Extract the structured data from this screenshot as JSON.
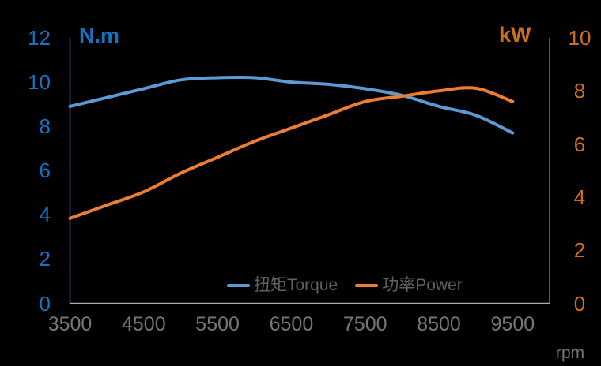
{
  "chart_data": {
    "type": "line",
    "title": "",
    "x_label": "rpm",
    "x": [
      3500,
      4000,
      4500,
      5000,
      5500,
      6000,
      6500,
      7000,
      7500,
      8000,
      8500,
      9000,
      9500
    ],
    "x_axis": {
      "min": 3500,
      "max": 10000,
      "tick_interval": 1000,
      "tick_values": [
        3500,
        4500,
        5500,
        6500,
        7500,
        8500,
        9500
      ],
      "tick_labels": [
        "3500",
        "4500",
        "5500",
        "6500",
        "7500",
        "8500",
        "9500"
      ]
    },
    "series": [
      {
        "name": "扭矩Torque",
        "axis": "left",
        "unit": "N.m",
        "color": "#5B9BD5",
        "values": [
          8.9,
          9.3,
          9.7,
          10.1,
          10.2,
          10.2,
          10.0,
          9.9,
          9.7,
          9.4,
          8.9,
          8.5,
          7.7
        ]
      },
      {
        "name": "功率Power",
        "axis": "right",
        "unit": "kW",
        "color": "#ED7D31",
        "values": [
          3.2,
          3.7,
          4.2,
          4.9,
          5.5,
          6.1,
          6.6,
          7.1,
          7.6,
          7.8,
          8.0,
          8.1,
          7.6
        ]
      }
    ],
    "left_axis": {
      "title": "N.m",
      "min": 0,
      "max": 12,
      "ticks": [
        12,
        10,
        8,
        6,
        4,
        2,
        0
      ],
      "label_color": "#1473C4",
      "line_color": "#2E75B6"
    },
    "right_axis": {
      "title": "kW",
      "min": 0,
      "max": 10,
      "ticks": [
        10,
        8,
        6,
        4,
        2,
        0
      ],
      "label_color": "#D06E1A",
      "line_color": "#C05A28"
    },
    "bottom_axis": {
      "label_color": "#767676",
      "line_color": "#ABABAB"
    },
    "legend": {
      "position": "bottom",
      "text_color": "#616161",
      "items": [
        "扭矩Torque",
        "功率Power"
      ]
    },
    "grid": false,
    "background": "#000000"
  }
}
